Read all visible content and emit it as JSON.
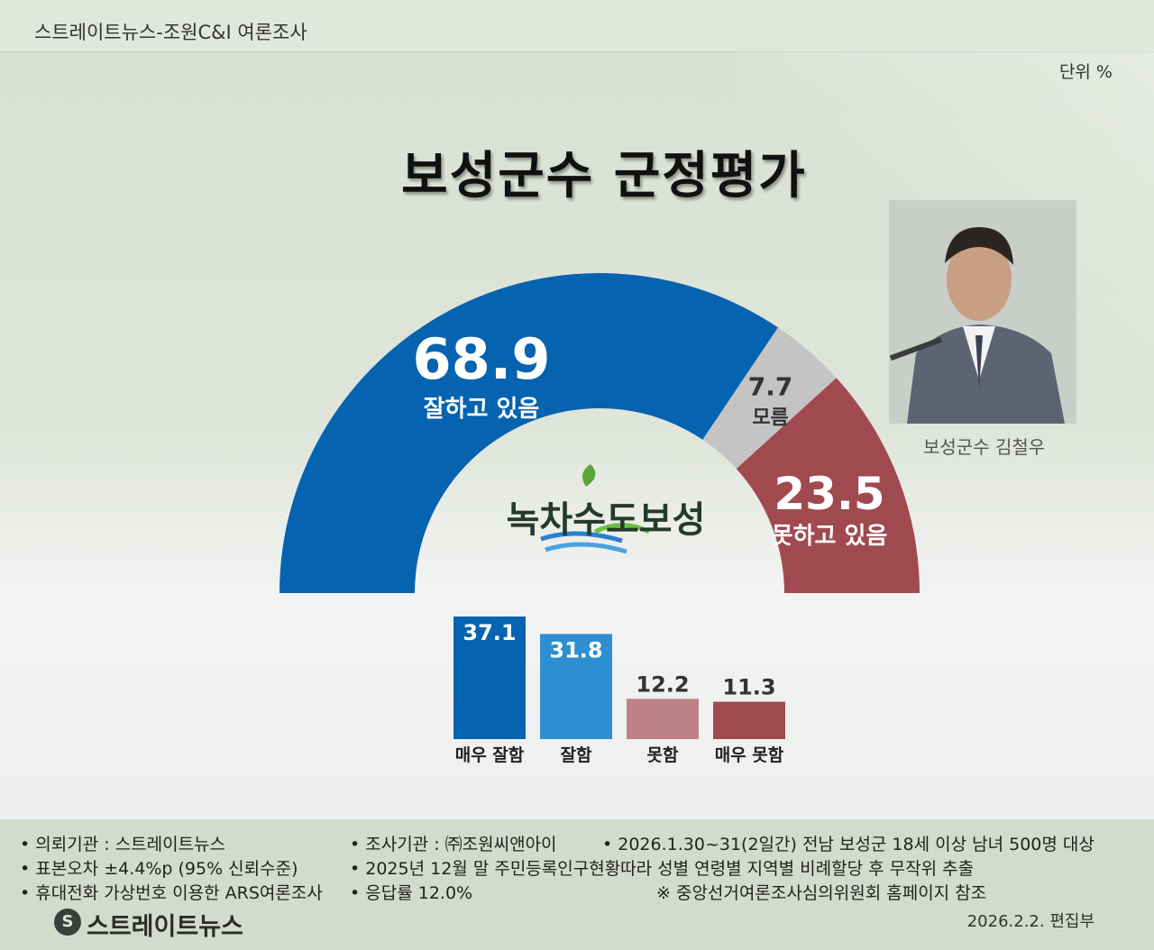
{
  "header": {
    "source": "스트레이트뉴스-조원C&I 여론조사",
    "unit": "단위 %"
  },
  "title": "보성군수 군정평가",
  "photo_caption": "보성군수 김철우",
  "center_logo": "녹차수도보성",
  "colors": {
    "good": "#0563b0",
    "dontknow": "#c4c4c4",
    "bad": "#a04a50",
    "very_good": "#0563b0",
    "somewhat_good": "#2e8fd0",
    "somewhat_bad": "#bf8286",
    "very_bad": "#a04a50"
  },
  "chart_data": [
    {
      "type": "pie",
      "shape": "half-donut",
      "labels": [
        "잘하고 있음",
        "모름",
        "못하고 있음"
      ],
      "values": [
        68.9,
        7.7,
        23.5
      ],
      "value_labels": [
        "68.9",
        "7.7",
        "23.5"
      ]
    },
    {
      "type": "bar",
      "categories": [
        "매우 잘함",
        "잘함",
        "못함",
        "매우 못함"
      ],
      "values": [
        37.1,
        31.8,
        12.2,
        11.3
      ],
      "value_labels": [
        "37.1",
        "31.8",
        "12.2",
        "11.3"
      ]
    }
  ],
  "footer": {
    "client": "• 의뢰기관 : 스트레이트뉴스",
    "agency": "• 조사기관 : ㈜조원씨앤아이",
    "period": "• 2026.1.30~31(2일간) 전남 보성군 18세 이상 남녀 500명 대상",
    "error": "• 표본오차 ±4.4%p (95% 신뢰수준)",
    "sampling": "• 2025년 12월 말 주민등록인구현황따라 성별 연령별 지역별 비례할당 후 무작위 추출",
    "method": "• 휴대전화 가상번호 이용한 ARS여론조사",
    "response": "• 응답률 12.0%",
    "reference": "※ 중앙선거여론조사심의위원회 홈페이지 참조",
    "logo": "스트레이트뉴스",
    "logo_mark": "S",
    "date": "2026.2.2. 편집부"
  }
}
